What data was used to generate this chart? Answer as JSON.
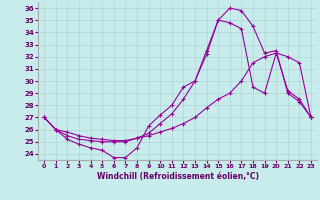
{
  "xlabel": "Windchill (Refroidissement éolien,°C)",
  "background_color": "#c8ecec",
  "line_color": "#990099",
  "xlim": [
    -0.5,
    23.5
  ],
  "ylim": [
    23.5,
    36.5
  ],
  "yticks": [
    24,
    25,
    26,
    27,
    28,
    29,
    30,
    31,
    32,
    33,
    34,
    35,
    36
  ],
  "xticks": [
    0,
    1,
    2,
    3,
    4,
    5,
    6,
    7,
    8,
    9,
    10,
    11,
    12,
    13,
    14,
    15,
    16,
    17,
    18,
    19,
    20,
    21,
    22,
    23
  ],
  "line1": {
    "x": [
      0,
      1,
      2,
      3,
      4,
      5,
      6,
      7,
      8,
      9,
      10,
      11,
      12,
      13,
      14,
      15,
      16,
      17,
      18,
      19,
      20,
      21,
      22,
      23
    ],
    "y": [
      27.0,
      26.0,
      25.2,
      24.8,
      24.5,
      24.3,
      23.7,
      23.7,
      24.5,
      26.3,
      27.2,
      28.0,
      29.5,
      30.0,
      32.2,
      35.0,
      34.8,
      34.3,
      29.5,
      29.0,
      32.3,
      29.2,
      28.5,
      27.0
    ]
  },
  "line2": {
    "x": [
      0,
      1,
      2,
      3,
      4,
      5,
      6,
      7,
      8,
      9,
      10,
      11,
      12,
      13,
      14,
      15,
      16,
      17,
      18,
      19,
      20,
      21,
      22,
      23
    ],
    "y": [
      27.0,
      26.0,
      25.5,
      25.2,
      25.1,
      25.0,
      25.0,
      25.0,
      25.3,
      25.7,
      26.5,
      27.3,
      28.5,
      30.0,
      32.5,
      35.0,
      36.0,
      35.8,
      34.5,
      32.3,
      32.5,
      29.0,
      28.3,
      27.0
    ]
  },
  "line3": {
    "x": [
      0,
      1,
      2,
      3,
      4,
      5,
      6,
      7,
      8,
      9,
      10,
      11,
      12,
      13,
      14,
      15,
      16,
      17,
      18,
      19,
      20,
      21,
      22,
      23
    ],
    "y": [
      27.0,
      26.0,
      25.8,
      25.5,
      25.3,
      25.2,
      25.1,
      25.1,
      25.3,
      25.5,
      25.8,
      26.1,
      26.5,
      27.0,
      27.8,
      28.5,
      29.0,
      30.0,
      31.5,
      32.0,
      32.3,
      32.0,
      31.5,
      27.0
    ]
  }
}
